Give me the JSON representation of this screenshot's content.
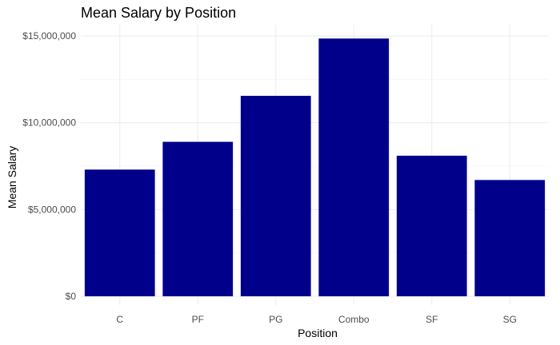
{
  "chart_data": {
    "type": "bar",
    "title": "Mean Salary by Position",
    "xlabel": "Position",
    "ylabel": "Mean Salary",
    "categories": [
      "C",
      "PF",
      "PG",
      "Combo",
      "SF",
      "SG"
    ],
    "values": [
      7300000,
      8900000,
      11550000,
      14850000,
      8100000,
      6700000
    ],
    "ylim": [
      0,
      15000000
    ],
    "yticks": [
      {
        "value": 0,
        "label": "$0"
      },
      {
        "value": 5000000,
        "label": "$5,000,000"
      },
      {
        "value": 10000000,
        "label": "$10,000,000"
      },
      {
        "value": 15000000,
        "label": "$15,000,000"
      }
    ],
    "bar_color": "#00008B",
    "grid": true,
    "legend": "none"
  }
}
